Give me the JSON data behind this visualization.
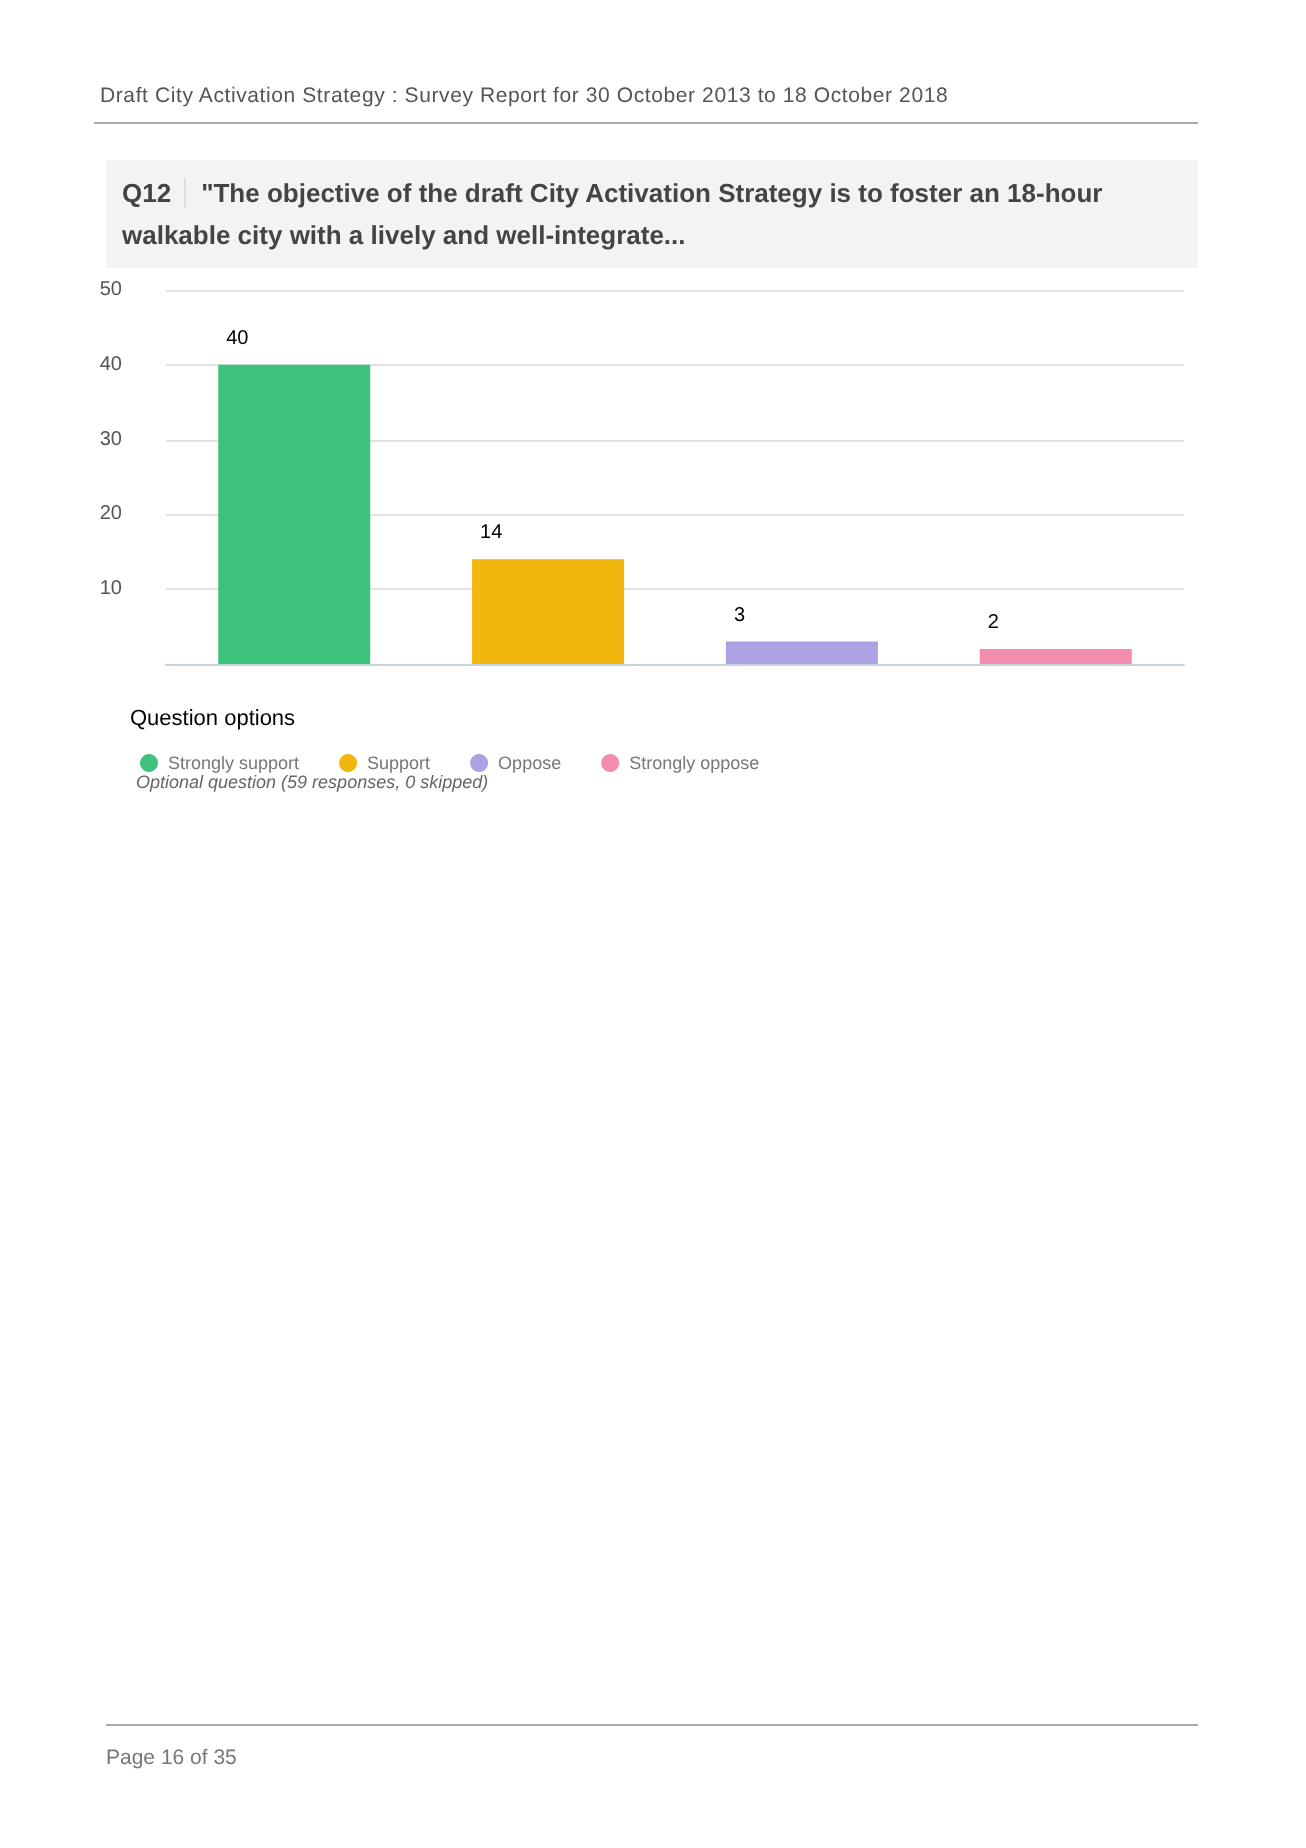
{
  "chart_data": {
    "type": "bar",
    "title": "Q12",
    "subtitle": "\"The objective of the draft City Activation Strategy is to foster an 18-hour walkable city with a lively and well-integrate...",
    "categories": [
      null
    ],
    "series": [
      {
        "name": "Strongly support",
        "color": "#3ec27e",
        "values": [
          40
        ]
      },
      {
        "name": "Support",
        "color": "#f2b70d",
        "values": [
          14
        ]
      },
      {
        "name": "Oppose",
        "color": "#aba1e3",
        "values": [
          3
        ]
      },
      {
        "name": "Strongly oppose",
        "color": "#f48cae",
        "values": [
          2
        ]
      }
    ],
    "ylim": [
      0,
      50
    ],
    "yticks": [
      {
        "value": 0,
        "label": null
      },
      10,
      20,
      30,
      40,
      50
    ],
    "grid": "y",
    "data_labels": true,
    "legend": "bottom left",
    "legend_title": "Question options",
    "annotations": [
      "Draft City Activation Strategy : Survey Report for 30 October 2013 to 18 October 2018",
      "Optional question (59 responses, 0 skipped)",
      "Page 16 of 35"
    ]
  }
}
